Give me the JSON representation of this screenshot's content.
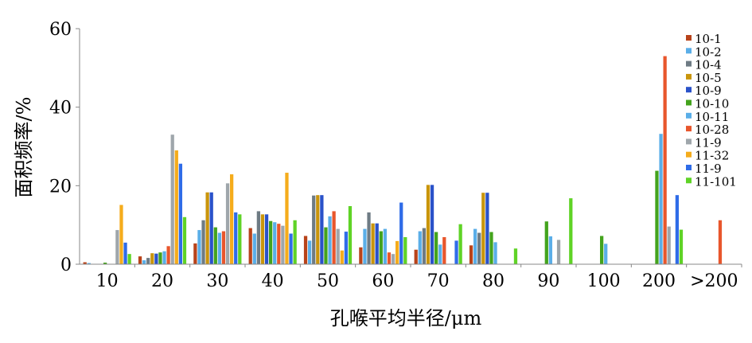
{
  "chart_data": {
    "type": "bar",
    "xlabel": "孔喉平均半径/μm",
    "ylabel": "面积频率/%",
    "ylim": [
      0,
      60
    ],
    "yticks": [
      0,
      20,
      40,
      60
    ],
    "categories": [
      "10",
      "20",
      "30",
      "40",
      "50",
      "60",
      "70",
      "80",
      "90",
      "100",
      "200",
      ">200"
    ],
    "legend_position": "right",
    "grid": false,
    "series": [
      {
        "name": "10-1",
        "color": "#b8431a",
        "values": [
          0.5,
          2.0,
          5.3,
          9.2,
          7.2,
          4.3,
          3.7,
          4.8,
          0,
          0,
          0,
          0
        ]
      },
      {
        "name": "10-2",
        "color": "#5aaee8",
        "values": [
          0.3,
          1.0,
          8.7,
          7.8,
          6.0,
          9.0,
          8.4,
          9.0,
          0,
          0,
          0,
          0
        ]
      },
      {
        "name": "10-4",
        "color": "#6e7b84",
        "values": [
          0,
          1.6,
          11.2,
          13.5,
          17.5,
          13.2,
          9.2,
          8.0,
          0,
          0,
          0,
          0
        ]
      },
      {
        "name": "10-5",
        "color": "#c9950c",
        "values": [
          0,
          2.8,
          18.3,
          12.7,
          17.6,
          10.4,
          20.2,
          18.2,
          0,
          0,
          0,
          0
        ]
      },
      {
        "name": "10-9",
        "color": "#2a52c9",
        "values": [
          0,
          2.7,
          18.3,
          12.7,
          17.6,
          10.4,
          20.2,
          18.2,
          0,
          0,
          0,
          0
        ]
      },
      {
        "name": "10-10",
        "color": "#43a31d",
        "values": [
          0.4,
          3.0,
          9.4,
          11.0,
          9.4,
          8.4,
          8.2,
          8.2,
          10.9,
          7.2,
          23.8,
          0
        ]
      },
      {
        "name": "10-11",
        "color": "#5aaee8",
        "values": [
          0,
          3.3,
          8.0,
          10.7,
          12.2,
          9.0,
          5.0,
          5.6,
          7.1,
          5.2,
          33.2,
          0
        ]
      },
      {
        "name": "10-28",
        "color": "#e8562c",
        "values": [
          0,
          4.6,
          8.4,
          10.3,
          13.5,
          3.0,
          6.9,
          0,
          0,
          0,
          53.0,
          11.2
        ]
      },
      {
        "name": "11-9",
        "color": "#9fa6ab",
        "values": [
          8.7,
          33.0,
          20.6,
          9.8,
          9.0,
          2.6,
          0,
          0,
          6.2,
          0,
          9.6,
          0
        ]
      },
      {
        "name": "11-32",
        "color": "#f5ac1c",
        "values": [
          15.1,
          29.0,
          22.9,
          23.3,
          3.5,
          5.9,
          0,
          0,
          0,
          0,
          0,
          0
        ]
      },
      {
        "name": "11-9",
        "color": "#2f6ce8",
        "values": [
          5.5,
          25.6,
          13.2,
          7.8,
          8.3,
          15.7,
          6.0,
          0,
          0,
          0,
          17.6,
          0
        ]
      },
      {
        "name": "11-101",
        "color": "#5fd326",
        "values": [
          2.6,
          12.0,
          12.7,
          11.2,
          14.8,
          6.9,
          10.2,
          4.0,
          16.8,
          0,
          8.8,
          0
        ]
      }
    ]
  }
}
